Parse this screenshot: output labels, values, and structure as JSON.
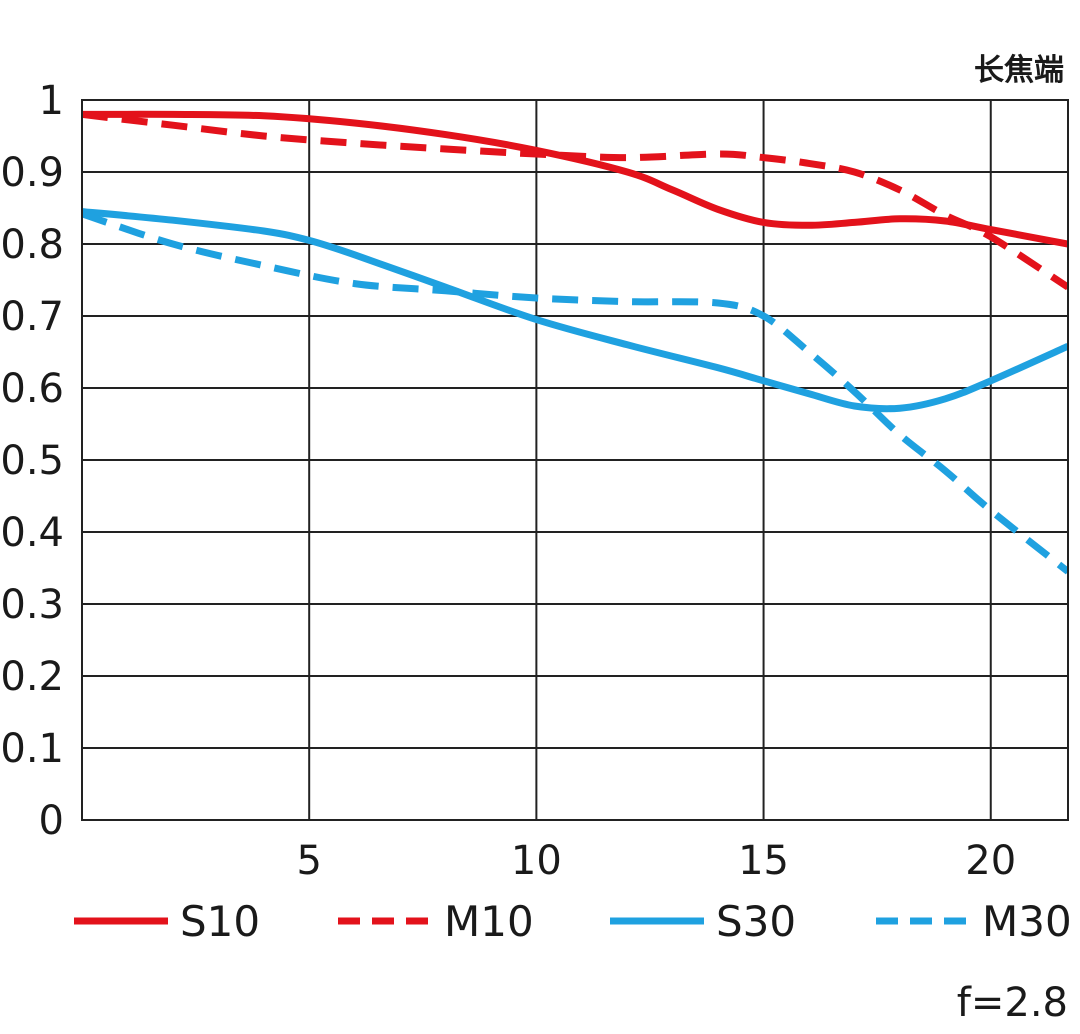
{
  "chart_data": {
    "type": "line",
    "title": "长焦端",
    "aperture_label": "f=2.8",
    "xlabel": "",
    "ylabel": "",
    "xlim": [
      0,
      21.7
    ],
    "ylim": [
      0,
      1
    ],
    "grid": true,
    "x_ticks": [
      5,
      10,
      15,
      20
    ],
    "x_tick_labels": [
      "5",
      "10",
      "15",
      "20"
    ],
    "y_ticks": [
      0,
      0.1,
      0.2,
      0.3,
      0.4,
      0.5,
      0.6,
      0.7,
      0.8,
      0.9,
      1
    ],
    "y_tick_labels": [
      "0",
      "0.1",
      "0.2",
      "0.3",
      "0.4",
      "0.5",
      "0.6",
      "0.7",
      "0.8",
      "0.9",
      "1"
    ],
    "legend_position": "bottom",
    "series": [
      {
        "name": "S10",
        "color": "#e3121b",
        "dash": "solid",
        "x": [
          0,
          2,
          4,
          6,
          8,
          10,
          12,
          13,
          14,
          15,
          16,
          17,
          18,
          19,
          20,
          21.7
        ],
        "y": [
          0.98,
          0.98,
          0.978,
          0.968,
          0.952,
          0.93,
          0.9,
          0.875,
          0.848,
          0.83,
          0.826,
          0.83,
          0.835,
          0.832,
          0.82,
          0.8
        ]
      },
      {
        "name": "M10",
        "color": "#e3121b",
        "dash": "dashed",
        "x": [
          0,
          2,
          4,
          6,
          8,
          10,
          12,
          14,
          15,
          16,
          17,
          18,
          19,
          20,
          21.7
        ],
        "y": [
          0.98,
          0.965,
          0.95,
          0.94,
          0.932,
          0.925,
          0.92,
          0.925,
          0.92,
          0.912,
          0.9,
          0.875,
          0.84,
          0.81,
          0.74
        ]
      },
      {
        "name": "S30",
        "color": "#1fa1e0",
        "dash": "solid",
        "x": [
          0,
          2,
          4,
          5,
          6,
          8,
          10,
          12,
          14,
          15,
          16,
          17,
          18,
          19,
          20,
          21.7
        ],
        "y": [
          0.845,
          0.833,
          0.818,
          0.805,
          0.785,
          0.74,
          0.695,
          0.66,
          0.628,
          0.61,
          0.592,
          0.575,
          0.572,
          0.585,
          0.61,
          0.658
        ]
      },
      {
        "name": "M30",
        "color": "#1fa1e0",
        "dash": "dashed",
        "x": [
          0,
          2,
          4,
          6,
          8,
          10,
          12,
          14,
          15,
          16,
          17,
          18,
          19,
          20,
          21.7
        ],
        "y": [
          0.842,
          0.8,
          0.77,
          0.745,
          0.735,
          0.725,
          0.72,
          0.718,
          0.7,
          0.65,
          0.595,
          0.535,
          0.485,
          0.43,
          0.345
        ]
      }
    ]
  }
}
